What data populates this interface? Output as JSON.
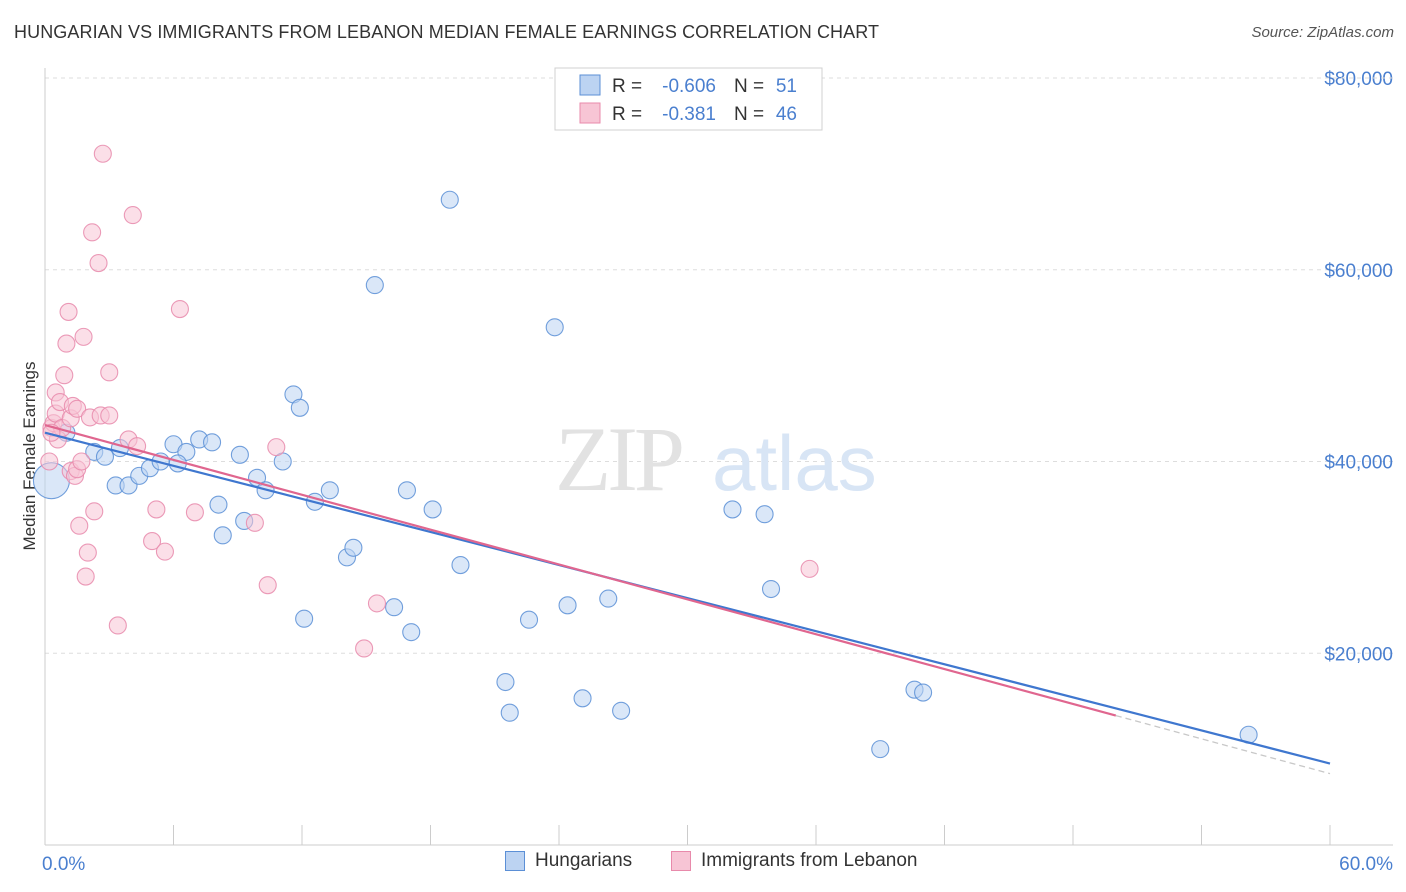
{
  "header": {
    "title": "HUNGARIAN VS IMMIGRANTS FROM LEBANON MEDIAN FEMALE EARNINGS CORRELATION CHART",
    "source": "Source: ZipAtlas.com"
  },
  "watermark": {
    "part1": "ZIP",
    "part2": "atlas"
  },
  "colors": {
    "blue": "#5b8fd6",
    "blue_fill": "#bcd3f2",
    "blue_line": "#3f77cf",
    "pink": "#e88aab",
    "pink_fill": "#f7c5d5",
    "pink_line": "#e0668f",
    "axis_text": "#4a7fcf",
    "grid": "#dddddd"
  },
  "chart_data": {
    "type": "scatter",
    "xlabel": "",
    "ylabel": "Median Female Earnings",
    "xlim": [
      0,
      60
    ],
    "ylim": [
      0,
      80000
    ],
    "x_tick_labels": [
      "0.0%",
      "60.0%"
    ],
    "y_ticks": [
      20000,
      40000,
      60000,
      80000
    ],
    "y_tick_labels": [
      "$20,000",
      "$40,000",
      "$60,000",
      "$80,000"
    ],
    "grid": "horizontal dashed",
    "legend_position": "top-center",
    "legend": [
      {
        "r_label": "R =",
        "r_value": "-0.606",
        "n_label": "N =",
        "n_value": "51"
      },
      {
        "r_label": "R =",
        "r_value": "-0.381",
        "n_label": "N =",
        "n_value": "46"
      }
    ],
    "series": [
      {
        "name": "Hungarians",
        "color": "#5b8fd6",
        "trend": {
          "x0": 0,
          "y0": 43000,
          "x1": 60,
          "y1": 8500
        },
        "points": [
          [
            0.3,
            38000
          ],
          [
            1.0,
            43000
          ],
          [
            2.3,
            41000
          ],
          [
            2.8,
            40500
          ],
          [
            3.3,
            37500
          ],
          [
            3.9,
            37500
          ],
          [
            4.4,
            38500
          ],
          [
            4.9,
            39300
          ],
          [
            5.4,
            40000
          ],
          [
            6.0,
            41800
          ],
          [
            6.6,
            41000
          ],
          [
            6.2,
            39800
          ],
          [
            7.2,
            42300
          ],
          [
            7.8,
            42000
          ],
          [
            8.3,
            32300
          ],
          [
            8.1,
            35500
          ],
          [
            9.1,
            40700
          ],
          [
            9.3,
            33800
          ],
          [
            9.9,
            38300
          ],
          [
            10.3,
            37000
          ],
          [
            11.1,
            40000
          ],
          [
            11.6,
            47000
          ],
          [
            11.9,
            45600
          ],
          [
            12.1,
            23600
          ],
          [
            12.6,
            35800
          ],
          [
            13.3,
            37000
          ],
          [
            14.1,
            30000
          ],
          [
            14.4,
            31000
          ],
          [
            15.4,
            58400
          ],
          [
            16.3,
            24800
          ],
          [
            16.9,
            37000
          ],
          [
            17.1,
            22200
          ],
          [
            18.1,
            35000
          ],
          [
            18.9,
            67300
          ],
          [
            19.4,
            29200
          ],
          [
            21.5,
            17000
          ],
          [
            21.7,
            13800
          ],
          [
            22.6,
            23500
          ],
          [
            23.8,
            54000
          ],
          [
            24.4,
            25000
          ],
          [
            25.1,
            15300
          ],
          [
            26.3,
            25700
          ],
          [
            26.9,
            14000
          ],
          [
            32.1,
            35000
          ],
          [
            33.6,
            34500
          ],
          [
            33.9,
            26700
          ],
          [
            39.0,
            10000
          ],
          [
            40.6,
            16200
          ],
          [
            41.0,
            15900
          ],
          [
            56.2,
            11500
          ],
          [
            3.5,
            41400
          ]
        ],
        "sizes": {
          "0": 18
        }
      },
      {
        "name": "Immigrants from Lebanon",
        "color": "#e88aab",
        "trend": {
          "x0": 0,
          "y0": 43800,
          "x1": 50,
          "y1": 13500
        },
        "points": [
          [
            0.2,
            40000
          ],
          [
            0.3,
            43500
          ],
          [
            0.4,
            44000
          ],
          [
            0.5,
            47200
          ],
          [
            0.5,
            45000
          ],
          [
            0.6,
            42300
          ],
          [
            0.7,
            46200
          ],
          [
            0.8,
            43500
          ],
          [
            0.9,
            49000
          ],
          [
            1.0,
            52300
          ],
          [
            1.1,
            55600
          ],
          [
            1.2,
            44500
          ],
          [
            1.2,
            39000
          ],
          [
            1.3,
            45800
          ],
          [
            1.4,
            38500
          ],
          [
            1.5,
            39200
          ],
          [
            1.5,
            45500
          ],
          [
            1.6,
            33300
          ],
          [
            1.7,
            40000
          ],
          [
            1.8,
            53000
          ],
          [
            1.9,
            28000
          ],
          [
            2.0,
            30500
          ],
          [
            2.1,
            44600
          ],
          [
            2.2,
            63900
          ],
          [
            2.3,
            34800
          ],
          [
            2.5,
            60700
          ],
          [
            2.6,
            44800
          ],
          [
            2.7,
            72100
          ],
          [
            3.0,
            44800
          ],
          [
            3.0,
            49300
          ],
          [
            3.4,
            22900
          ],
          [
            3.9,
            42300
          ],
          [
            4.1,
            65700
          ],
          [
            4.3,
            41600
          ],
          [
            5.0,
            31700
          ],
          [
            5.2,
            35000
          ],
          [
            5.6,
            30600
          ],
          [
            6.3,
            55900
          ],
          [
            7.0,
            34700
          ],
          [
            9.8,
            33600
          ],
          [
            10.4,
            27100
          ],
          [
            10.8,
            41500
          ],
          [
            14.9,
            20500
          ],
          [
            15.5,
            25200
          ],
          [
            35.7,
            28800
          ],
          [
            0.3,
            43000
          ]
        ]
      }
    ]
  },
  "legend_bottom": {
    "items": [
      "Hungarians",
      "Immigrants from Lebanon"
    ]
  }
}
